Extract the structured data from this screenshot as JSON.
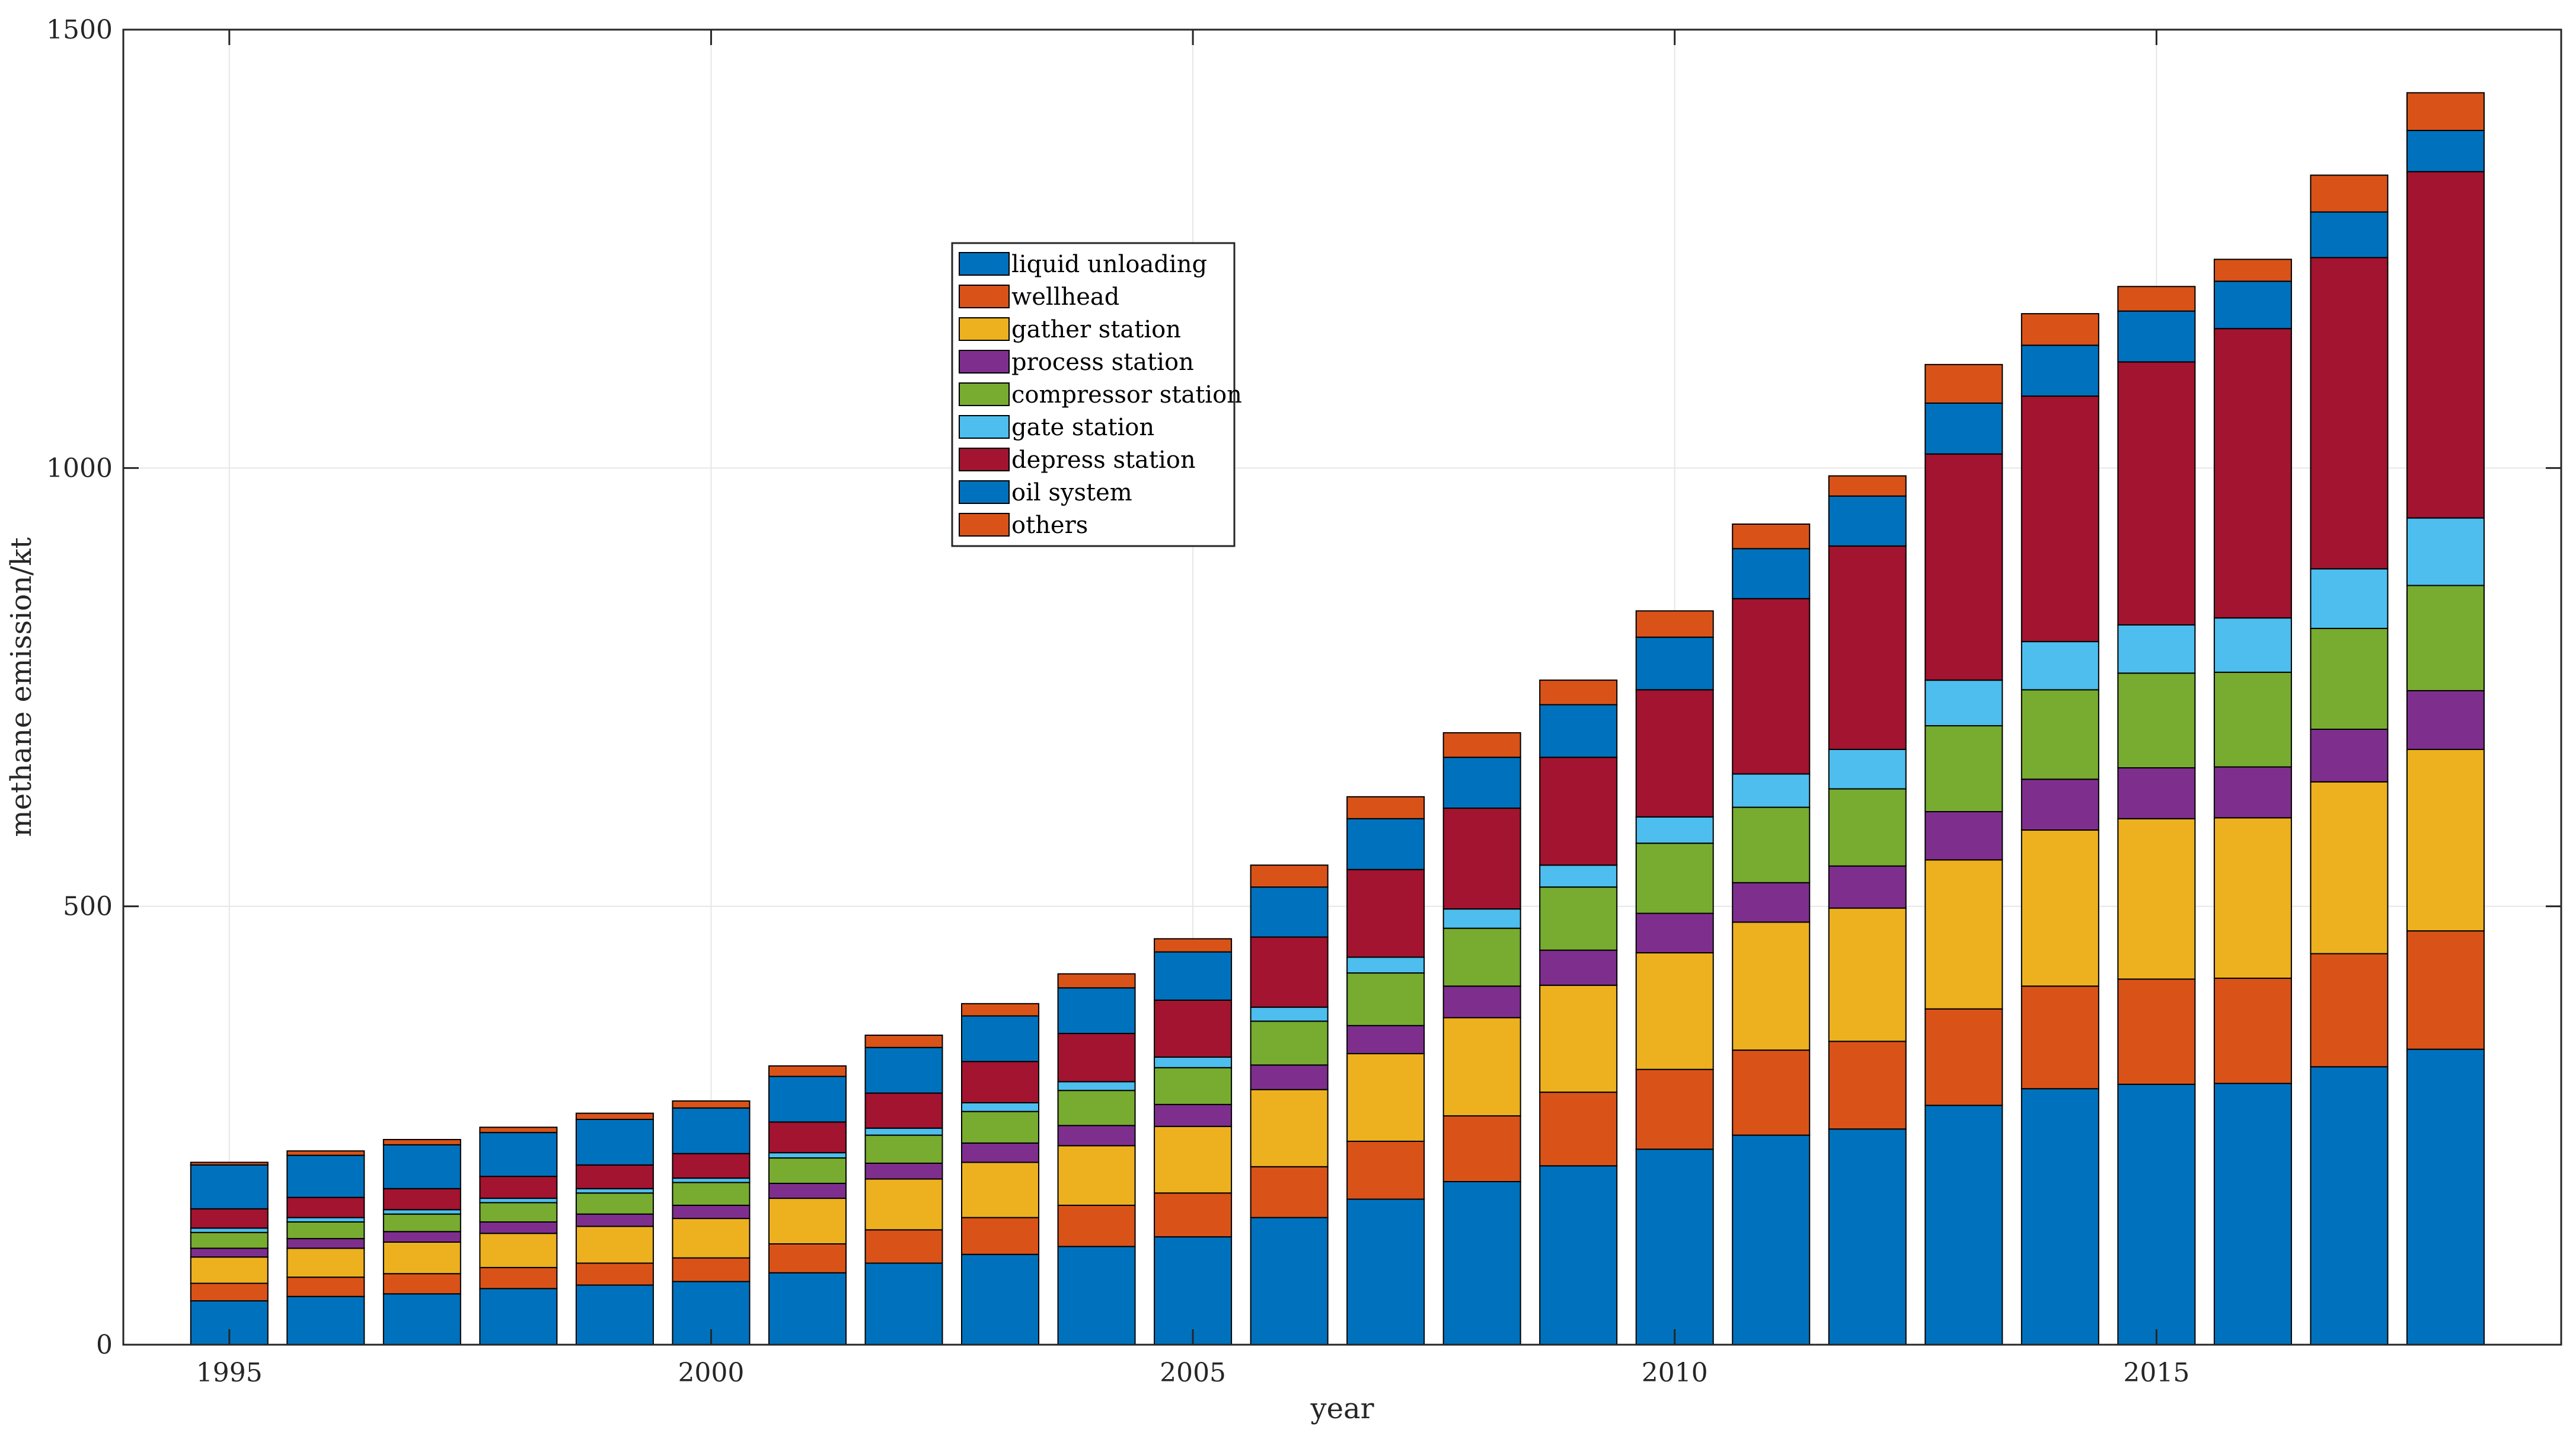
{
  "chart_data": {
    "type": "bar",
    "stacked": true,
    "title": "",
    "xlabel": "year",
    "ylabel": "methane emission/kt",
    "xlim": [
      1993.9,
      2019.2
    ],
    "ylim": [
      0,
      1500
    ],
    "xticks": [
      1995,
      2000,
      2005,
      2010,
      2015
    ],
    "yticks": [
      0,
      500,
      1000,
      1500
    ],
    "grid": true,
    "legend_position": "upper-center",
    "categories": [
      1995,
      1996,
      1997,
      1998,
      1999,
      2000,
      2001,
      2002,
      2003,
      2004,
      2005,
      2006,
      2007,
      2008,
      2009,
      2010,
      2011,
      2012,
      2013,
      2014,
      2015,
      2016,
      2017,
      2018
    ],
    "series": [
      {
        "name": "liquid unloading",
        "color": "#0072BD",
        "values": [
          50,
          55,
          58,
          64,
          68,
          72,
          82,
          93,
          103,
          112,
          123,
          145,
          166,
          186,
          204,
          223,
          239,
          246,
          273,
          292,
          297,
          298,
          317,
          337
        ]
      },
      {
        "name": "wellhead",
        "color": "#D95319",
        "values": [
          20,
          22,
          23,
          24,
          25,
          27,
          33,
          38,
          42,
          47,
          50,
          58,
          66,
          75,
          84,
          91,
          97,
          100,
          110,
          117,
          120,
          120,
          129,
          135
        ]
      },
      {
        "name": "gather station",
        "color": "#EDB120",
        "values": [
          30,
          33,
          36,
          39,
          42,
          45,
          52,
          58,
          63,
          68,
          76,
          88,
          100,
          112,
          122,
          133,
          146,
          152,
          170,
          178,
          183,
          183,
          196,
          207
        ]
      },
      {
        "name": "process station",
        "color": "#7E2F8E",
        "values": [
          10,
          11,
          12,
          13,
          14,
          15,
          17,
          18,
          22,
          23,
          25,
          28,
          32,
          36,
          40,
          45,
          45,
          48,
          55,
          58,
          58,
          58,
          60,
          67
        ]
      },
      {
        "name": "compressor station",
        "color": "#77AC30",
        "values": [
          18,
          19,
          20,
          22,
          24,
          26,
          29,
          32,
          36,
          40,
          42,
          50,
          60,
          66,
          72,
          80,
          86,
          88,
          98,
          102,
          108,
          108,
          115,
          120
        ]
      },
      {
        "name": "gate station",
        "color": "#4DBEEE",
        "values": [
          5,
          5,
          5,
          5,
          5,
          5,
          6,
          8,
          10,
          10,
          12,
          16,
          18,
          22,
          25,
          30,
          38,
          45,
          52,
          55,
          55,
          62,
          68,
          77
        ]
      },
      {
        "name": "depress station",
        "color": "#A2142F",
        "values": [
          22,
          23,
          24,
          25,
          27,
          28,
          35,
          40,
          47,
          55,
          65,
          80,
          100,
          115,
          123,
          145,
          200,
          232,
          258,
          280,
          300,
          330,
          355,
          395
        ]
      },
      {
        "name": "oil system",
        "color": "#0072BD",
        "values": [
          50,
          48,
          50,
          50,
          52,
          52,
          52,
          52,
          52,
          52,
          55,
          57,
          58,
          58,
          60,
          60,
          57,
          57,
          58,
          58,
          58,
          54,
          52,
          47
        ]
      },
      {
        "name": "others",
        "color": "#D95319",
        "values": [
          3,
          5,
          6,
          6,
          7,
          8,
          12,
          14,
          14,
          16,
          15,
          25,
          25,
          28,
          28,
          30,
          28,
          23,
          44,
          36,
          28,
          25,
          42,
          43
        ]
      }
    ]
  }
}
